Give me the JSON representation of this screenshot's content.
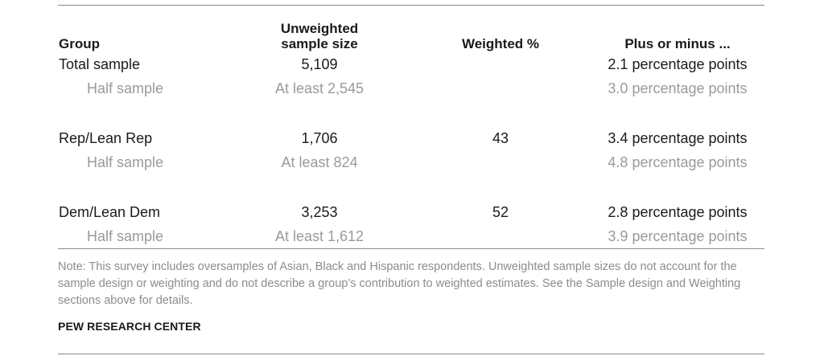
{
  "table": {
    "headers": {
      "group": "Group",
      "unweighted_line1": "Unweighted",
      "unweighted_line2": "sample size",
      "weighted": "Weighted %",
      "margin": "Plus or minus ..."
    },
    "rows": [
      {
        "group": "Total sample",
        "unweighted": "5,109",
        "weighted": "",
        "margin": "2.1 percentage points",
        "is_subgroup": false
      },
      {
        "group": "Half sample",
        "unweighted": "At least 2,545",
        "weighted": "",
        "margin": "3.0 percentage points",
        "is_subgroup": true
      },
      {
        "group": "Rep/Lean Rep",
        "unweighted": "1,706",
        "weighted": "43",
        "margin": "3.4 percentage points",
        "is_subgroup": false
      },
      {
        "group": "Half sample",
        "unweighted": "At least 824",
        "weighted": "",
        "margin": "4.8 percentage points",
        "is_subgroup": true
      },
      {
        "group": "Dem/Lean Dem",
        "unweighted": "3,253",
        "weighted": "52",
        "margin": "2.8 percentage points",
        "is_subgroup": false
      },
      {
        "group": "Half sample",
        "unweighted": "At least 1,612",
        "weighted": "",
        "margin": "3.9 percentage points",
        "is_subgroup": true
      }
    ]
  },
  "note": "Note: This survey includes oversamples of Asian, Black and Hispanic respondents. Unweighted sample sizes do not account for the sample design or weighting and do not describe a group’s contribution to weighted estimates. See the Sample design and Weighting sections above for details.",
  "source": "PEW RESEARCH CENTER",
  "colors": {
    "text": "#1a1a1a",
    "subgroup_text": "#9a9a9a",
    "note_text": "#8c8c8c",
    "rule": "#8a8a8a"
  }
}
